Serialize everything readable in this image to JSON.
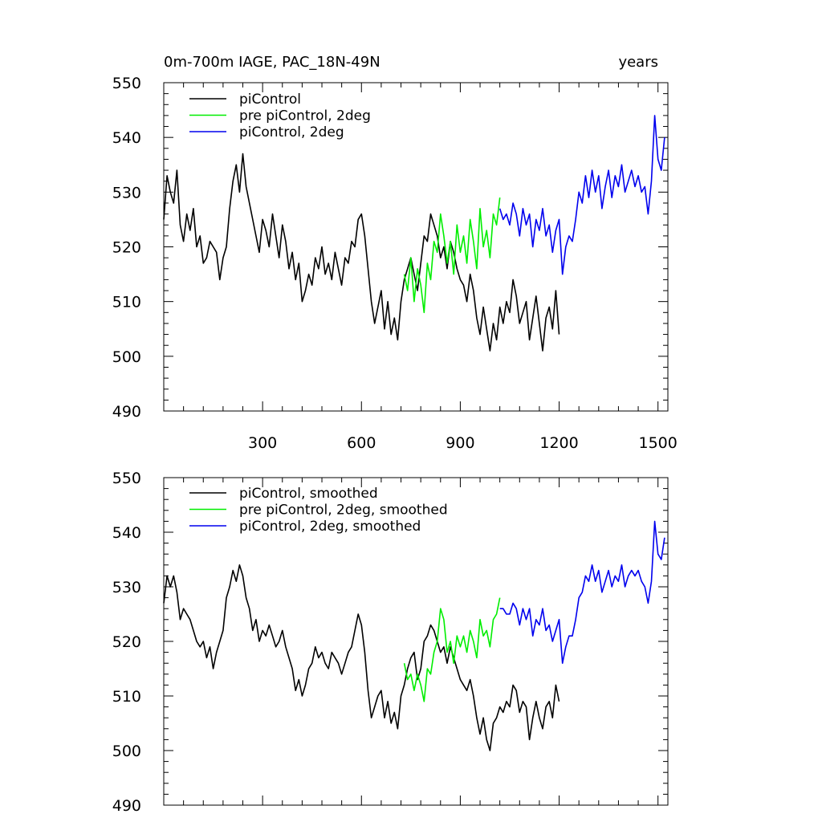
{
  "header": {
    "title_left": "0m-700m IAGE, PAC_18N-49N",
    "title_right": "years"
  },
  "colors": {
    "piControl": "#000000",
    "pre_2deg": "#00ee00",
    "piControl_2deg": "#0000ee"
  },
  "chart_data": [
    {
      "type": "line",
      "title": "0m-700m IAGE, PAC_18N-49N",
      "xlabel": "",
      "ylabel": "",
      "units_label": "years",
      "xlim": [
        0,
        1530
      ],
      "ylim": [
        490,
        550
      ],
      "xticks": [
        300,
        600,
        900,
        1200,
        1500
      ],
      "xtick_labels": [
        "300",
        "600",
        "900",
        "1200",
        "1500"
      ],
      "yticks": [
        490,
        500,
        510,
        520,
        530,
        540,
        550
      ],
      "ytick_labels": [
        "490",
        "500",
        "510",
        "520",
        "530",
        "540",
        "550"
      ],
      "legend": {
        "location": "top-left",
        "entries": [
          "piControl",
          "pre piControl, 2deg",
          "piControl, 2deg"
        ]
      },
      "series": [
        {
          "name": "piControl",
          "color": "#000000",
          "x": [
            0,
            10,
            20,
            30,
            40,
            50,
            60,
            70,
            80,
            90,
            100,
            110,
            120,
            130,
            140,
            150,
            160,
            170,
            180,
            190,
            200,
            210,
            220,
            230,
            240,
            250,
            260,
            270,
            280,
            290,
            300,
            310,
            320,
            330,
            340,
            350,
            360,
            370,
            380,
            390,
            400,
            410,
            420,
            430,
            440,
            450,
            460,
            470,
            480,
            490,
            500,
            510,
            520,
            530,
            540,
            550,
            560,
            570,
            580,
            590,
            600,
            610,
            620,
            630,
            640,
            650,
            660,
            670,
            680,
            690,
            700,
            710,
            720,
            730,
            740,
            750,
            760,
            770,
            780,
            790,
            800,
            810,
            820,
            830,
            840,
            850,
            860,
            870,
            880,
            890,
            900,
            910,
            920,
            930,
            940,
            950,
            960,
            970,
            980,
            990,
            1000,
            1010,
            1020,
            1030,
            1040,
            1050,
            1060,
            1070,
            1080,
            1090,
            1100,
            1110,
            1120,
            1130,
            1140,
            1150,
            1160,
            1170,
            1180,
            1190,
            1200
          ],
          "y": [
            525,
            533,
            530,
            528,
            534,
            524,
            521,
            526,
            523,
            527,
            520,
            522,
            517,
            518,
            521,
            520,
            519,
            514,
            518,
            520,
            527,
            532,
            535,
            530,
            537,
            531,
            528,
            525,
            522,
            519,
            525,
            523,
            520,
            526,
            522,
            518,
            524,
            521,
            516,
            519,
            514,
            517,
            510,
            512,
            515,
            513,
            518,
            516,
            520,
            515,
            517,
            514,
            519,
            516,
            513,
            518,
            517,
            521,
            520,
            525,
            526,
            522,
            516,
            510,
            506,
            509,
            512,
            505,
            510,
            504,
            507,
            503,
            510,
            514,
            516,
            518,
            515,
            512,
            517,
            522,
            521,
            526,
            524,
            522,
            518,
            520,
            516,
            521,
            519,
            516,
            514,
            513,
            510,
            515,
            512,
            507,
            504,
            509,
            505,
            501,
            506,
            503,
            509,
            506,
            510,
            508,
            514,
            511,
            506,
            508,
            510,
            503,
            507,
            511,
            506,
            501,
            507,
            509,
            505,
            512,
            504
          ]
        },
        {
          "name": "pre piControl, 2deg",
          "color": "#00ee00",
          "x": [
            730,
            740,
            750,
            760,
            770,
            780,
            790,
            800,
            810,
            820,
            830,
            840,
            850,
            860,
            870,
            880,
            890,
            900,
            910,
            920,
            930,
            940,
            950,
            960,
            970,
            980,
            990,
            1000,
            1010,
            1020
          ],
          "y": [
            515,
            512,
            518,
            510,
            516,
            513,
            508,
            517,
            514,
            521,
            519,
            526,
            522,
            517,
            521,
            515,
            524,
            519,
            522,
            517,
            525,
            521,
            516,
            527,
            520,
            523,
            518,
            526,
            524,
            529
          ]
        },
        {
          "name": "piControl, 2deg",
          "color": "#0000ee",
          "x": [
            1020,
            1030,
            1040,
            1050,
            1060,
            1070,
            1080,
            1090,
            1100,
            1110,
            1120,
            1130,
            1140,
            1150,
            1160,
            1170,
            1180,
            1190,
            1200,
            1210,
            1220,
            1230,
            1240,
            1250,
            1260,
            1270,
            1280,
            1290,
            1300,
            1310,
            1320,
            1330,
            1340,
            1350,
            1360,
            1370,
            1380,
            1390,
            1400,
            1410,
            1420,
            1430,
            1440,
            1450,
            1460,
            1470,
            1480,
            1490,
            1500,
            1510,
            1520
          ],
          "y": [
            527,
            525,
            526,
            524,
            528,
            526,
            522,
            527,
            524,
            526,
            520,
            525,
            523,
            527,
            522,
            524,
            519,
            523,
            525,
            515,
            520,
            522,
            521,
            525,
            530,
            528,
            533,
            529,
            534,
            530,
            533,
            527,
            531,
            534,
            529,
            533,
            531,
            535,
            530,
            532,
            534,
            531,
            533,
            530,
            531,
            526,
            532,
            544,
            536,
            534,
            540
          ]
        }
      ]
    },
    {
      "type": "line",
      "title": "",
      "xlabel": "",
      "ylabel": "",
      "xlim": [
        0,
        1530
      ],
      "ylim": [
        490,
        550
      ],
      "xticks": [
        300,
        600,
        900,
        1200,
        1500
      ],
      "yticks": [
        490,
        500,
        510,
        520,
        530,
        540,
        550
      ],
      "ytick_labels": [
        "490",
        "500",
        "510",
        "520",
        "530",
        "540",
        "550"
      ],
      "legend": {
        "location": "top-left",
        "entries": [
          "piControl, smoothed",
          "pre piControl, 2deg, smoothed",
          "piControl, 2deg, smoothed"
        ]
      },
      "series": [
        {
          "name": "piControl, smoothed",
          "color": "#000000",
          "x": [
            0,
            10,
            20,
            30,
            40,
            50,
            60,
            70,
            80,
            90,
            100,
            110,
            120,
            130,
            140,
            150,
            160,
            170,
            180,
            190,
            200,
            210,
            220,
            230,
            240,
            250,
            260,
            270,
            280,
            290,
            300,
            310,
            320,
            330,
            340,
            350,
            360,
            370,
            380,
            390,
            400,
            410,
            420,
            430,
            440,
            450,
            460,
            470,
            480,
            490,
            500,
            510,
            520,
            530,
            540,
            550,
            560,
            570,
            580,
            590,
            600,
            610,
            620,
            630,
            640,
            650,
            660,
            670,
            680,
            690,
            700,
            710,
            720,
            730,
            740,
            750,
            760,
            770,
            780,
            790,
            800,
            810,
            820,
            830,
            840,
            850,
            860,
            870,
            880,
            890,
            900,
            910,
            920,
            930,
            940,
            950,
            960,
            970,
            980,
            990,
            1000,
            1010,
            1020,
            1030,
            1040,
            1050,
            1060,
            1070,
            1080,
            1090,
            1100,
            1110,
            1120,
            1130,
            1140,
            1150,
            1160,
            1170,
            1180,
            1190,
            1200
          ],
          "y": [
            527,
            532,
            530,
            532,
            529,
            524,
            526,
            525,
            524,
            522,
            520,
            519,
            520,
            517,
            519,
            515,
            518,
            520,
            522,
            528,
            530,
            533,
            531,
            534,
            532,
            528,
            526,
            522,
            524,
            520,
            522,
            521,
            523,
            521,
            519,
            520,
            522,
            519,
            517,
            515,
            511,
            513,
            510,
            512,
            515,
            516,
            519,
            517,
            518,
            516,
            515,
            518,
            517,
            516,
            514,
            516,
            518,
            519,
            522,
            525,
            523,
            518,
            511,
            506,
            508,
            510,
            511,
            506,
            509,
            505,
            507,
            504,
            510,
            512,
            515,
            517,
            518,
            513,
            515,
            520,
            521,
            523,
            522,
            520,
            518,
            519,
            516,
            519,
            517,
            515,
            513,
            512,
            511,
            513,
            510,
            506,
            503,
            506,
            502,
            500,
            505,
            506,
            508,
            507,
            509,
            508,
            512,
            511,
            507,
            509,
            508,
            502,
            506,
            509,
            506,
            504,
            508,
            509,
            506,
            512,
            509
          ]
        },
        {
          "name": "pre piControl, 2deg, smoothed",
          "color": "#00ee00",
          "x": [
            730,
            740,
            750,
            760,
            770,
            780,
            790,
            800,
            810,
            820,
            830,
            840,
            850,
            860,
            870,
            880,
            890,
            900,
            910,
            920,
            930,
            940,
            950,
            960,
            970,
            980,
            990,
            1000,
            1010,
            1020
          ],
          "y": [
            516,
            513,
            514,
            511,
            514,
            512,
            509,
            515,
            514,
            518,
            520,
            526,
            524,
            518,
            520,
            516,
            521,
            519,
            521,
            518,
            522,
            520,
            517,
            524,
            521,
            522,
            519,
            524,
            525,
            528
          ]
        },
        {
          "name": "piControl, 2deg, smoothed",
          "color": "#0000ee",
          "x": [
            1020,
            1030,
            1040,
            1050,
            1060,
            1070,
            1080,
            1090,
            1100,
            1110,
            1120,
            1130,
            1140,
            1150,
            1160,
            1170,
            1180,
            1190,
            1200,
            1210,
            1220,
            1230,
            1240,
            1250,
            1260,
            1270,
            1280,
            1290,
            1300,
            1310,
            1320,
            1330,
            1340,
            1350,
            1360,
            1370,
            1380,
            1390,
            1400,
            1410,
            1420,
            1430,
            1440,
            1450,
            1460,
            1470,
            1480,
            1490,
            1500,
            1510,
            1520
          ],
          "y": [
            526,
            526,
            525,
            525,
            527,
            526,
            523,
            526,
            524,
            526,
            521,
            524,
            523,
            526,
            522,
            523,
            520,
            522,
            524,
            516,
            519,
            521,
            521,
            524,
            528,
            529,
            532,
            531,
            534,
            531,
            533,
            529,
            531,
            533,
            530,
            532,
            531,
            534,
            530,
            532,
            533,
            532,
            533,
            531,
            530,
            527,
            531,
            542,
            536,
            535,
            539
          ]
        }
      ]
    }
  ]
}
